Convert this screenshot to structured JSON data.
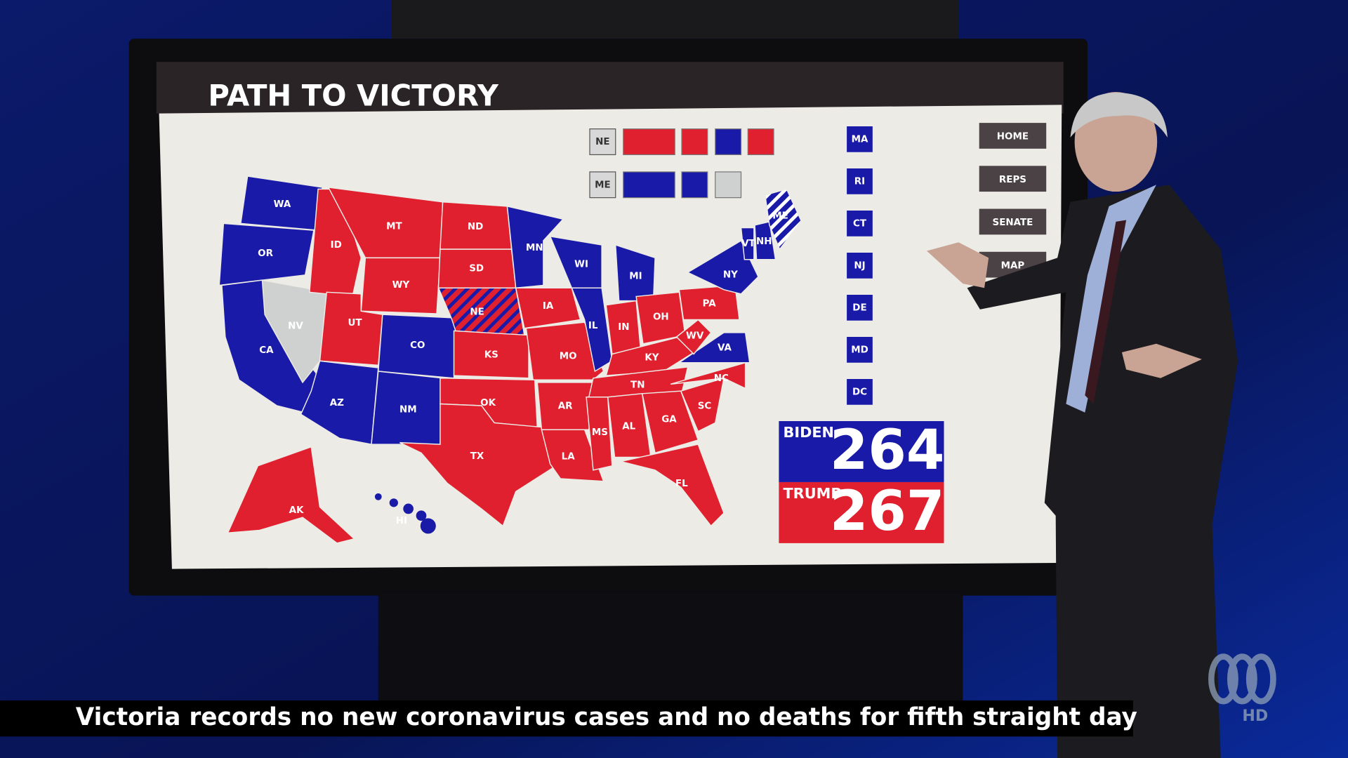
{
  "header": {
    "title": "PATH TO VICTORY"
  },
  "nav": [
    "HOME",
    "REPS",
    "SENATE",
    "MAP"
  ],
  "states": [
    {
      "label": "WA",
      "color": "#1a1aa8"
    },
    {
      "label": "OR",
      "color": "#1a1aa8"
    },
    {
      "label": "CA",
      "color": "#1a1aa8"
    },
    {
      "label": "NV",
      "color": "#cfd0d0"
    },
    {
      "label": "ID",
      "color": "#e0202e"
    },
    {
      "label": "MT",
      "color": "#e0202e"
    },
    {
      "label": "WY",
      "color": "#e0202e"
    },
    {
      "label": "UT",
      "color": "#e0202e"
    },
    {
      "label": "CO",
      "color": "#1a1aa8"
    },
    {
      "label": "AZ",
      "color": "#1a1aa8"
    },
    {
      "label": "NM",
      "color": "#1a1aa8"
    },
    {
      "label": "ND",
      "color": "#e0202e"
    },
    {
      "label": "SD",
      "color": "#e0202e"
    },
    {
      "label": "NE",
      "color": "#e0202e",
      "hatch": "#1a1aa8"
    },
    {
      "label": "KS",
      "color": "#e0202e"
    },
    {
      "label": "OK",
      "color": "#e0202e"
    },
    {
      "label": "TX",
      "color": "#e0202e"
    },
    {
      "label": "MN",
      "color": "#1a1aa8"
    },
    {
      "label": "IA",
      "color": "#e0202e"
    },
    {
      "label": "MO",
      "color": "#e0202e"
    },
    {
      "label": "AR",
      "color": "#e0202e"
    },
    {
      "label": "LA",
      "color": "#e0202e"
    },
    {
      "label": "WI",
      "color": "#1a1aa8"
    },
    {
      "label": "IL",
      "color": "#1a1aa8"
    },
    {
      "label": "MI",
      "color": "#1a1aa8"
    },
    {
      "label": "IN",
      "color": "#e0202e"
    },
    {
      "label": "OH",
      "color": "#e0202e"
    },
    {
      "label": "KY",
      "color": "#e0202e"
    },
    {
      "label": "TN",
      "color": "#e0202e"
    },
    {
      "label": "MS",
      "color": "#e0202e"
    },
    {
      "label": "AL",
      "color": "#e0202e"
    },
    {
      "label": "GA",
      "color": "#e0202e"
    },
    {
      "label": "FL",
      "color": "#e0202e"
    },
    {
      "label": "SC",
      "color": "#e0202e"
    },
    {
      "label": "NC",
      "color": "#e0202e"
    },
    {
      "label": "VA",
      "color": "#1a1aa8"
    },
    {
      "label": "WV",
      "color": "#e0202e"
    },
    {
      "label": "PA",
      "color": "#e0202e"
    },
    {
      "label": "NY",
      "color": "#1a1aa8"
    },
    {
      "label": "VT",
      "color": "#1a1aa8"
    },
    {
      "label": "NH",
      "color": "#1a1aa8"
    },
    {
      "label": "ME",
      "color": "#1a1aa8",
      "hatch": "#ffffff"
    },
    {
      "label": "AK",
      "color": "#e0202e"
    },
    {
      "label": "HI",
      "color": "#1a1aa8"
    }
  ],
  "splits": [
    {
      "label": "NE",
      "colors": [
        "#e0202e",
        "#e0202e",
        "#1a1aa8",
        "#e0202e"
      ]
    },
    {
      "label": "ME",
      "colors": [
        "#1a1aa8",
        "#1a1aa8",
        "#cfd0d0"
      ]
    }
  ],
  "small_states": [
    {
      "label": "MA",
      "color": "#1a1aa8"
    },
    {
      "label": "RI",
      "color": "#1a1aa8"
    },
    {
      "label": "CT",
      "color": "#1a1aa8"
    },
    {
      "label": "NJ",
      "color": "#1a1aa8"
    },
    {
      "label": "DE",
      "color": "#1a1aa8"
    },
    {
      "label": "MD",
      "color": "#1a1aa8"
    },
    {
      "label": "DC",
      "color": "#1a1aa8"
    }
  ],
  "tally": [
    {
      "name": "BIDEN",
      "value": 264,
      "color": "#1a1aa8"
    },
    {
      "name": "TRUMP",
      "value": 267,
      "color": "#e0202e"
    }
  ],
  "ticker": "Victoria records no new coronavirus cases and no deaths for fifth straight day",
  "logo": "HD"
}
